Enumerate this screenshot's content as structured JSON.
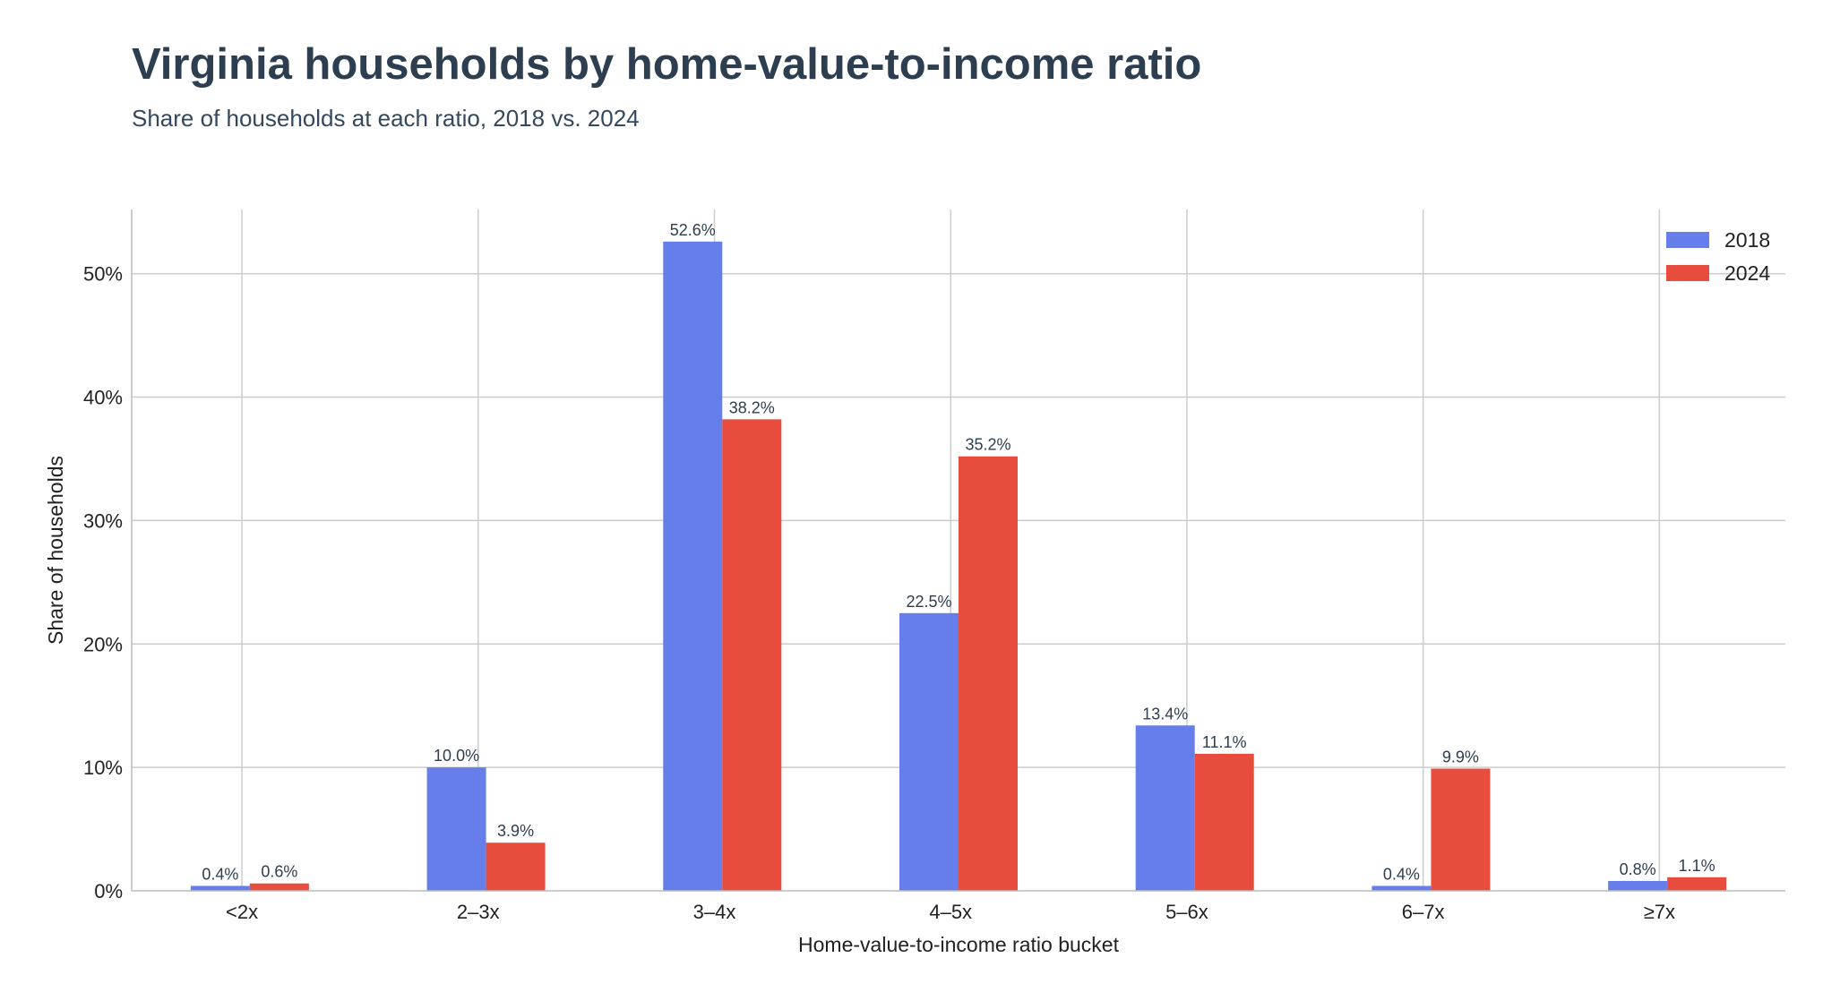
{
  "header": {
    "title": "Virginia households by home-value-to-income ratio",
    "subtitle": "Share of households at each ratio, 2018 vs. 2024"
  },
  "chart_data": {
    "type": "bar",
    "title": "Virginia households by home-value-to-income ratio",
    "subtitle": "Share of households at each ratio, 2018 vs. 2024",
    "xlabel": "Home-value-to-income ratio bucket",
    "ylabel": "Share of households",
    "categories": [
      "<2x",
      "2–3x",
      "3–4x",
      "4–5x",
      "5–6x",
      "6–7x",
      "≥7x"
    ],
    "series": [
      {
        "name": "2018",
        "color": "#667eea",
        "values": [
          0.4,
          10.0,
          52.6,
          22.5,
          13.4,
          0.4,
          0.8
        ],
        "labels": [
          "0.4%",
          "10.0%",
          "52.6%",
          "22.5%",
          "13.4%",
          "0.4%",
          "0.8%"
        ]
      },
      {
        "name": "2024",
        "color": "#e74c3c",
        "values": [
          0.6,
          3.9,
          38.2,
          35.2,
          11.1,
          9.9,
          1.1
        ],
        "labels": [
          "0.6%",
          "3.9%",
          "38.2%",
          "35.2%",
          "11.1%",
          "9.9%",
          "1.1%"
        ]
      }
    ],
    "ylim": [
      0,
      55.2
    ],
    "yticks": [
      0,
      10,
      20,
      30,
      40,
      50
    ],
    "ytick_labels": [
      "0%",
      "10%",
      "20%",
      "30%",
      "40%",
      "50%"
    ],
    "grid": true,
    "legend": "top-right"
  }
}
